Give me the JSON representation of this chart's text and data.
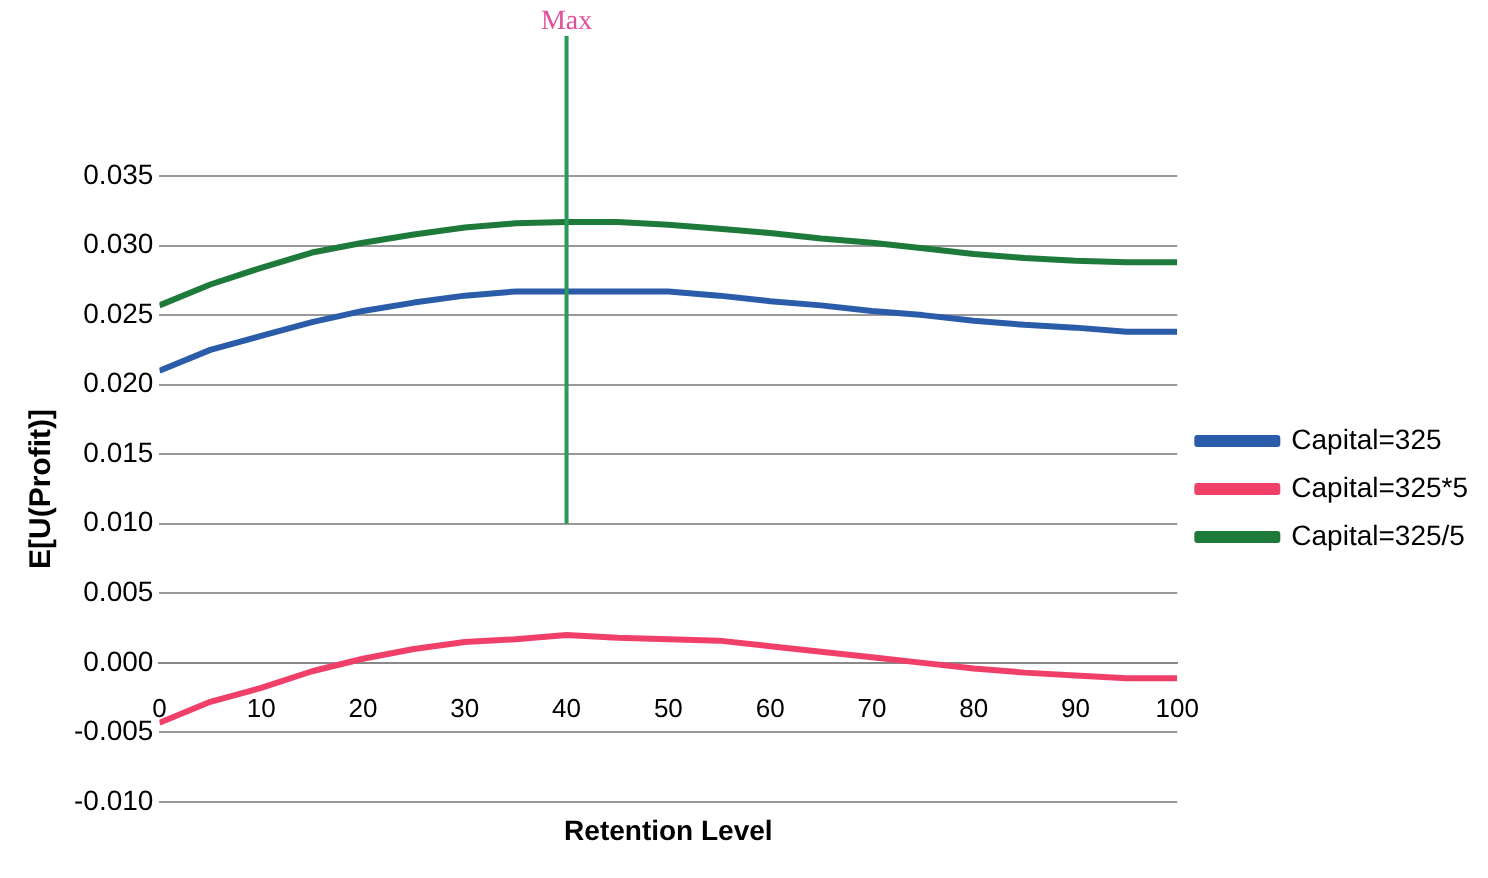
{
  "chart_data": {
    "type": "line",
    "xlabel": "Retention Level",
    "ylabel": "E[U(Profit)]",
    "x": [
      0,
      5,
      10,
      15,
      20,
      25,
      30,
      35,
      40,
      45,
      50,
      55,
      60,
      65,
      70,
      75,
      80,
      85,
      90,
      95,
      100
    ],
    "series": [
      {
        "name": "Capital=325",
        "color": "#2a5caa",
        "values": [
          0.021,
          0.0225,
          0.0235,
          0.0245,
          0.0253,
          0.0259,
          0.0264,
          0.0267,
          0.0267,
          0.0267,
          0.0267,
          0.0264,
          0.026,
          0.0257,
          0.0253,
          0.025,
          0.0246,
          0.0243,
          0.0241,
          0.0238,
          0.0238
        ]
      },
      {
        "name": "Capital=325*5",
        "color": "#f0406a",
        "values": [
          -0.0043,
          -0.0028,
          -0.0018,
          -0.0006,
          0.0003,
          0.001,
          0.0015,
          0.0017,
          0.002,
          0.0018,
          0.0017,
          0.0016,
          0.0012,
          0.0008,
          0.0004,
          0.0,
          -0.0004,
          -0.0007,
          -0.0009,
          -0.0011,
          -0.0011
        ]
      },
      {
        "name": "Capital=325/5",
        "color": "#1e7a3a",
        "values": [
          0.0257,
          0.0272,
          0.0284,
          0.0295,
          0.0302,
          0.0308,
          0.0313,
          0.0316,
          0.0317,
          0.0317,
          0.0315,
          0.0312,
          0.0309,
          0.0305,
          0.0302,
          0.0298,
          0.0294,
          0.0291,
          0.0289,
          0.0288,
          0.0288
        ]
      }
    ],
    "xlim": [
      0,
      100
    ],
    "xticks": [
      0,
      10,
      20,
      30,
      40,
      50,
      60,
      70,
      80,
      90,
      100
    ],
    "ylim": [
      -0.01,
      0.035
    ],
    "yticks": [
      {
        "value": -0.01,
        "label": "-0.010"
      },
      {
        "value": -0.005,
        "label": "-0.005"
      },
      {
        "value": 0,
        "label": "0.000"
      },
      {
        "value": 0.005,
        "label": "0.005"
      },
      {
        "value": 0.01,
        "label": "0.010"
      },
      {
        "value": 0.015,
        "label": "0.015"
      },
      {
        "value": 0.02,
        "label": "0.020"
      },
      {
        "value": 0.025,
        "label": "0.025"
      },
      {
        "value": 0.03,
        "label": "0.030"
      },
      {
        "value": 0.035,
        "label": "0.035"
      }
    ],
    "ref_lines": [
      {
        "axis": "x",
        "value": 40,
        "label": "Max",
        "color": "#2a9a5a"
      }
    ],
    "grid": "y",
    "legend": "right",
    "marker": "none",
    "line_style": "solid"
  }
}
